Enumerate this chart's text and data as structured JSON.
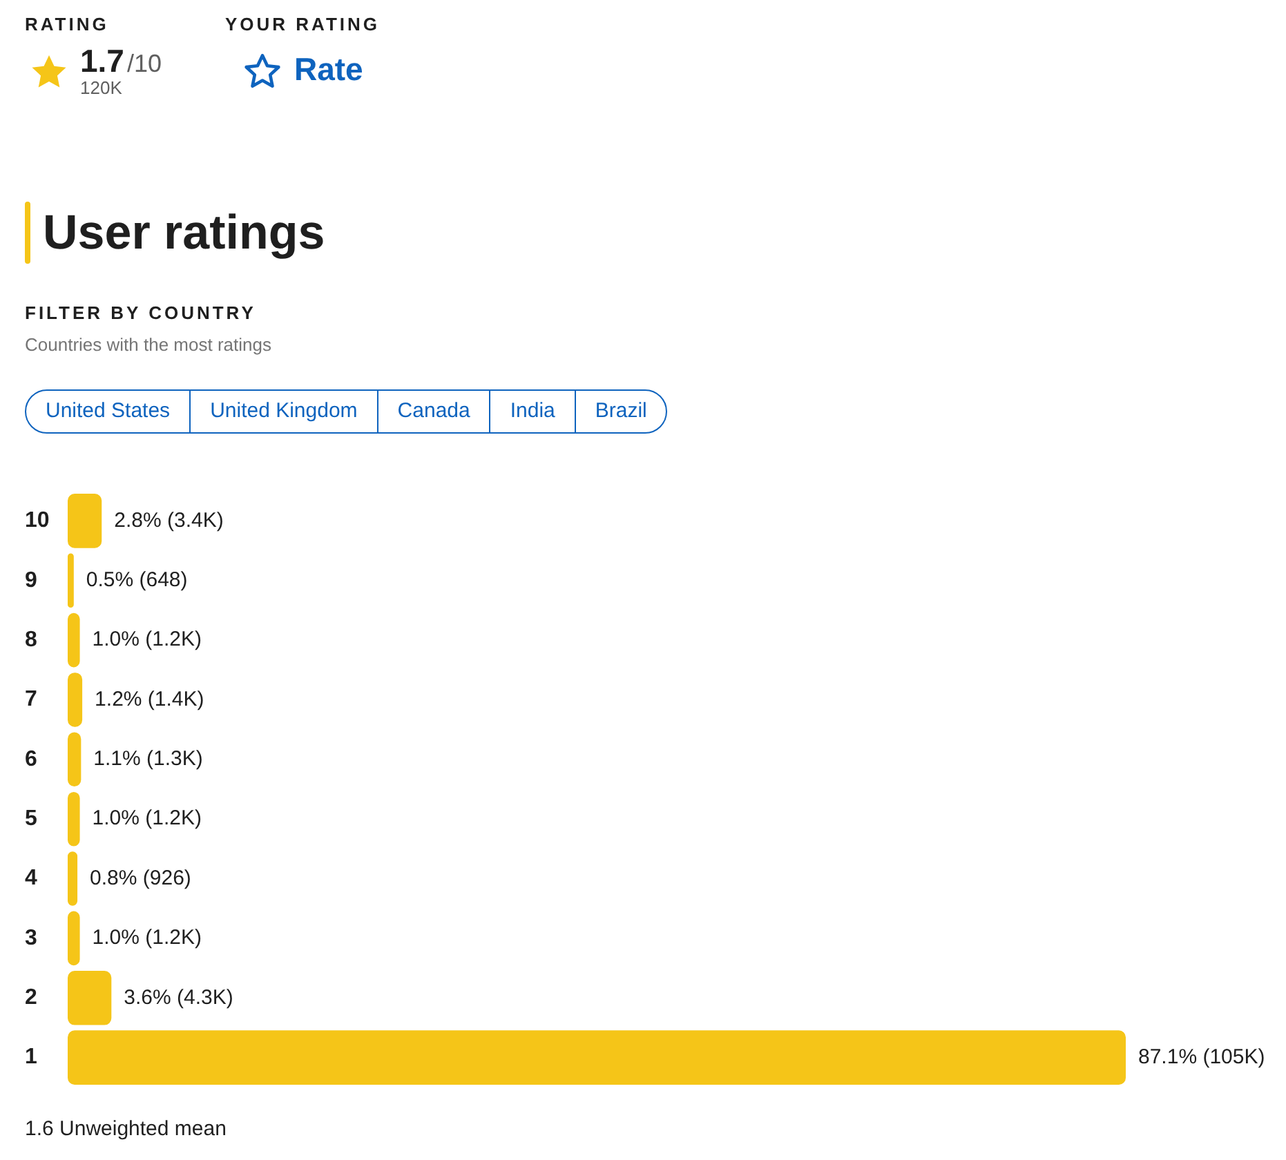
{
  "chart_data": {
    "type": "bar",
    "orientation": "horizontal",
    "title": "User ratings",
    "categories": [
      "10",
      "9",
      "8",
      "7",
      "6",
      "5",
      "4",
      "3",
      "2",
      "1"
    ],
    "values": [
      2.8,
      0.5,
      1.0,
      1.2,
      1.1,
      1.0,
      0.8,
      1.0,
      3.6,
      87.1
    ],
    "value_labels": [
      "2.8% (3.4K)",
      "0.5% (648)",
      "1.0% (1.2K)",
      "1.2% (1.4K)",
      "1.1% (1.3K)",
      "1.0% (1.2K)",
      "0.8% (926)",
      "1.0% (1.2K)",
      "3.6% (4.3K)",
      "87.1% (105K)"
    ],
    "color": "#f5c518",
    "tick_labels": "y",
    "annotations": [
      "RATING",
      "1.7",
      "/10",
      "120K",
      "YOUR RATING",
      "Rate",
      "FILTER BY COUNTRY",
      "Countries with the most ratings",
      "United States",
      "United Kingdom",
      "Canada",
      "India",
      "Brazil",
      "1.6 Unweighted mean"
    ]
  }
}
